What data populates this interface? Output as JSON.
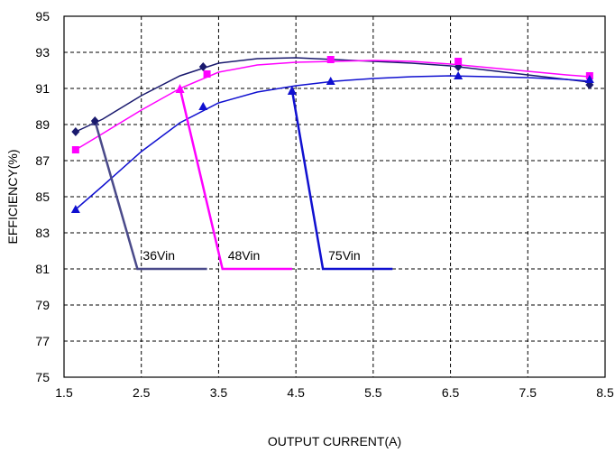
{
  "chart_data": {
    "type": "line",
    "title": "",
    "xlabel": "OUTPUT CURRENT(A)",
    "ylabel": "EFFICIENCY(%)",
    "xlim": [
      1.5,
      8.5
    ],
    "ylim": [
      75,
      95
    ],
    "xticks": [
      "1.5",
      "2.5",
      "3.5",
      "4.5",
      "5.5",
      "6.5",
      "7.5",
      "8.5"
    ],
    "yticks": [
      "75",
      "77",
      "79",
      "81",
      "83",
      "85",
      "87",
      "89",
      "91",
      "93",
      "95"
    ],
    "grid": true,
    "grid_style": "dashed",
    "legend": "callouts",
    "series": [
      {
        "name": "36Vin",
        "color": "#1a1a6e",
        "marker": "diamond",
        "points": [
          [
            1.65,
            88.6
          ],
          [
            1.9,
            89.2
          ],
          [
            3.3,
            92.2
          ],
          [
            6.6,
            92.2
          ],
          [
            8.3,
            91.2
          ]
        ],
        "curve": [
          [
            1.65,
            88.6
          ],
          [
            2.0,
            89.3
          ],
          [
            2.5,
            90.6
          ],
          [
            3.0,
            91.7
          ],
          [
            3.5,
            92.4
          ],
          [
            4.0,
            92.65
          ],
          [
            4.5,
            92.7
          ],
          [
            5.0,
            92.6
          ],
          [
            5.5,
            92.5
          ],
          [
            6.0,
            92.4
          ],
          [
            6.5,
            92.25
          ],
          [
            7.0,
            92.0
          ],
          [
            7.5,
            91.75
          ],
          [
            8.0,
            91.5
          ],
          [
            8.3,
            91.35
          ]
        ],
        "callout_anchor": [
          1.9,
          89.2
        ],
        "callout_bend": [
          2.45,
          81.0
        ],
        "callout_end": [
          3.35,
          81.0
        ],
        "callout_color": "#4a4a8a"
      },
      {
        "name": "48Vin",
        "color": "#ff00ff",
        "marker": "square",
        "points": [
          [
            1.65,
            87.6
          ],
          [
            3.35,
            91.8
          ],
          [
            4.95,
            92.6
          ],
          [
            6.6,
            92.5
          ],
          [
            8.3,
            91.7
          ]
        ],
        "curve": [
          [
            1.65,
            87.6
          ],
          [
            2.0,
            88.5
          ],
          [
            2.5,
            89.8
          ],
          [
            3.0,
            91.0
          ],
          [
            3.5,
            91.9
          ],
          [
            4.0,
            92.3
          ],
          [
            4.5,
            92.45
          ],
          [
            5.0,
            92.5
          ],
          [
            5.5,
            92.55
          ],
          [
            6.0,
            92.5
          ],
          [
            6.5,
            92.35
          ],
          [
            7.0,
            92.15
          ],
          [
            7.5,
            91.95
          ],
          [
            8.0,
            91.75
          ],
          [
            8.3,
            91.65
          ]
        ],
        "callout_anchor": [
          3.0,
          91.0
        ],
        "callout_bend": [
          3.55,
          81.0
        ],
        "callout_end": [
          4.45,
          81.0
        ],
        "callout_color": "#ff00ff"
      },
      {
        "name": "75Vin",
        "color": "#1010d0",
        "marker": "triangle",
        "points": [
          [
            1.65,
            84.3
          ],
          [
            3.3,
            90.0
          ],
          [
            4.95,
            91.4
          ],
          [
            6.6,
            91.7
          ],
          [
            8.3,
            91.5
          ]
        ],
        "curve": [
          [
            1.65,
            84.3
          ],
          [
            2.0,
            85.6
          ],
          [
            2.5,
            87.5
          ],
          [
            3.0,
            89.1
          ],
          [
            3.5,
            90.2
          ],
          [
            4.0,
            90.8
          ],
          [
            4.5,
            91.15
          ],
          [
            5.0,
            91.4
          ],
          [
            5.5,
            91.55
          ],
          [
            6.0,
            91.65
          ],
          [
            6.5,
            91.7
          ],
          [
            7.0,
            91.65
          ],
          [
            7.5,
            91.6
          ],
          [
            8.0,
            91.5
          ],
          [
            8.3,
            91.4
          ]
        ],
        "callout_anchor": [
          4.45,
          90.9
        ],
        "callout_bend": [
          4.85,
          81.0
        ],
        "callout_end": [
          5.75,
          81.0
        ],
        "callout_color": "#1010d0"
      }
    ]
  }
}
